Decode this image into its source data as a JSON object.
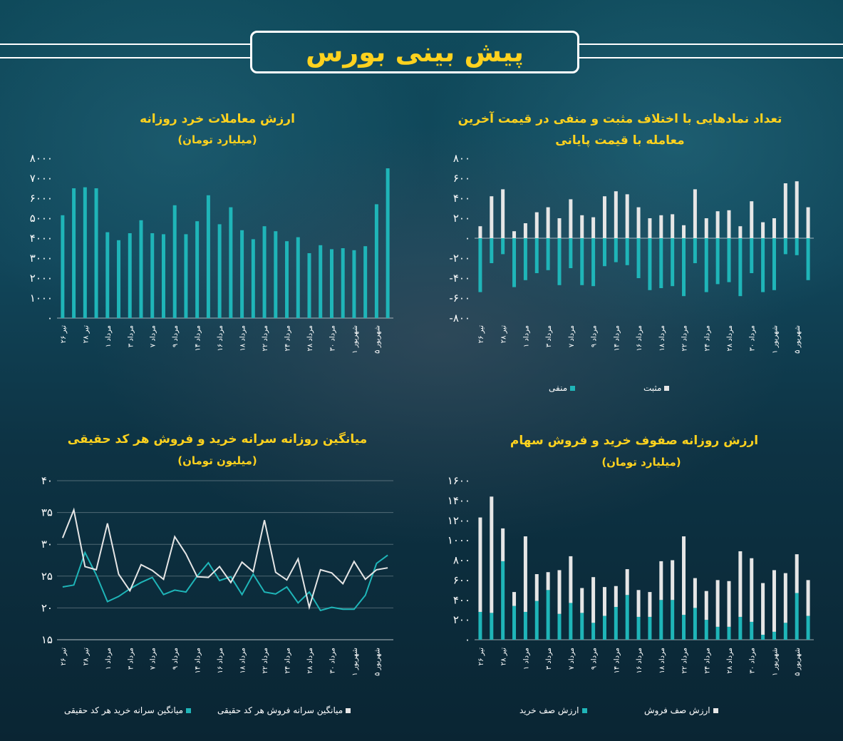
{
  "header": {
    "title": "پیش بینی بورس"
  },
  "colors": {
    "accent": "#ffd21e",
    "teal": "#1fb5b8",
    "white": "#e6e6e6"
  },
  "x_dates": [
    "۲۶ تیر",
    "۲۸ تیر",
    "۱ مرداد",
    "۳ مرداد",
    "۷ مرداد",
    "۹ مرداد",
    "۱۴ مرداد",
    "۱۶ مرداد",
    "۱۸ مرداد",
    "۲۲ مرداد",
    "۲۴ مرداد",
    "۲۸ مرداد",
    "۳۰ مرداد",
    "۱ شهریور",
    "۵ شهریور"
  ],
  "charts": {
    "retail": {
      "title": "ارزش معاملات خرد روزانه",
      "subtitle": "(میلیارد تومان)",
      "chart_data": {
        "type": "bar",
        "ylim": [
          0,
          8000
        ],
        "yticks": [
          "۰",
          "۱۰۰۰",
          "۲۰۰۰",
          "۳۰۰۰",
          "۴۰۰۰",
          "۵۰۰۰",
          "۶۰۰۰",
          "۷۰۰۰",
          "۸۰۰۰"
        ],
        "series": [
          {
            "values": [
              5150,
              6500,
              6550,
              6500,
              4300,
              3900,
              4250,
              4900,
              4250,
              4200,
              5650,
              4200,
              4850,
              6150,
              4700,
              5550,
              4400,
              3950,
              4600,
              4350,
              3850,
              4050,
              3250,
              3650,
              3450,
              3500,
              3400,
              3600,
              5700,
              7500
            ]
          }
        ]
      }
    },
    "gap": {
      "title": "تعداد نمادهایی با اختلاف مثبت و منفی در قیمت آخرین",
      "title2": "معامله با قیمت پایانی",
      "legend": [
        "منفی",
        "مثبت"
      ],
      "chart_data": {
        "type": "bar",
        "ylim": [
          -800,
          800
        ],
        "yticks": [
          "-۸۰۰",
          "-۶۰۰",
          "-۴۰۰",
          "-۲۰۰",
          "۰",
          "۲۰۰",
          "۴۰۰",
          "۶۰۰",
          "۸۰۰"
        ],
        "series": [
          {
            "name": "مثبت",
            "values": [
              120,
              420,
              490,
              70,
              150,
              260,
              310,
              200,
              390,
              230,
              210,
              420,
              470,
              440,
              310,
              200,
              230,
              240,
              130,
              490,
              200,
              270,
              280,
              120,
              370,
              160,
              200,
              550,
              570,
              310
            ]
          },
          {
            "name": "منفی",
            "values": [
              -540,
              -250,
              -160,
              -490,
              -420,
              -350,
              -320,
              -470,
              -300,
              -470,
              -480,
              -280,
              -240,
              -270,
              -400,
              -520,
              -500,
              -480,
              -580,
              -250,
              -540,
              -460,
              -440,
              -580,
              -350,
              -540,
              -520,
              -160,
              -170,
              -420
            ]
          }
        ]
      }
    },
    "per_code": {
      "title": "میانگین روزانه سرانه خرید و فروش هر کد حقیقی",
      "subtitle": "(میلیون تومان)",
      "legend": [
        "میانگین سرانه خرید هر کد حقیقی",
        "میانگین سرانه فروش هر کد حقیقی"
      ],
      "chart_data": {
        "type": "line",
        "ylim": [
          15,
          40
        ],
        "yticks": [
          "۱۵",
          "۲۰",
          "۲۵",
          "۳۰",
          "۳۵",
          "۴۰"
        ],
        "series": [
          {
            "name": "میانگین سرانه خرید هر کد حقیقی",
            "values": [
              23.3,
              23.6,
              28.7,
              25.2,
              21.0,
              21.8,
              23.0,
              24.0,
              24.8,
              22.1,
              22.8,
              22.5,
              25.0,
              27.1,
              24.3,
              24.9,
              22.1,
              25.3,
              22.5,
              22.2,
              23.3,
              20.8,
              22.5,
              19.6,
              20.1,
              19.8,
              19.8,
              22.0,
              27.0,
              28.3
            ]
          },
          {
            "name": "میانگین سرانه فروش هر کد حقیقی",
            "values": [
              31.0,
              35.4,
              26.5,
              26.0,
              33.3,
              25.3,
              22.7,
              26.8,
              25.9,
              24.5,
              31.2,
              28.5,
              24.9,
              24.8,
              26.5,
              24.0,
              27.2,
              25.7,
              33.8,
              25.6,
              24.4,
              27.7,
              20.1,
              26.0,
              25.5,
              23.8,
              27.3,
              24.5,
              26.0,
              26.3
            ]
          }
        ]
      }
    },
    "queues": {
      "title": "ارزش روزانه صفوف خرید و فروش سهام",
      "subtitle": "(میلیارد تومان)",
      "legend": [
        "ارزش صف خرید",
        "ارزش صف فروش"
      ],
      "chart_data": {
        "type": "bar",
        "ylim": [
          0,
          1600
        ],
        "yticks": [
          "۰",
          "۲۰۰",
          "۴۰۰",
          "۶۰۰",
          "۸۰۰",
          "۱۰۰۰",
          "۱۲۰۰",
          "۱۴۰۰",
          "۱۶۰۰"
        ],
        "series": [
          {
            "name": "ارزش صف خرید",
            "values": [
              280,
              270,
              790,
              340,
              280,
              390,
              500,
              260,
              370,
              270,
              170,
              240,
              330,
              450,
              230,
              230,
              400,
              400,
              250,
              320,
              200,
              130,
              130,
              230,
              180,
              50,
              80,
              170,
              470,
              240
            ]
          },
          {
            "name": "ارزش صف فروش",
            "values": [
              950,
              1170,
              330,
              140,
              760,
              270,
              180,
              440,
              470,
              250,
              460,
              290,
              210,
              260,
              270,
              250,
              390,
              400,
              790,
              300,
              290,
              470,
              460,
              660,
              640,
              520,
              620,
              500,
              390,
              360
            ]
          }
        ]
      }
    }
  }
}
